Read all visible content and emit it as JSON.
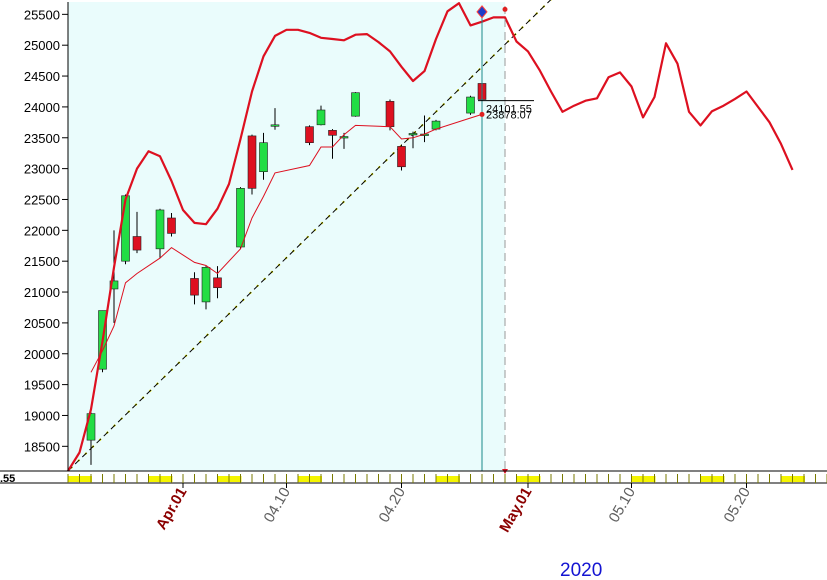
{
  "chart_data": {
    "type": "candlestick",
    "y_axis": {
      "ticks": [
        18500,
        19000,
        19500,
        20000,
        20500,
        21000,
        21500,
        22000,
        22500,
        23000,
        23500,
        24000,
        24500,
        25000,
        25500
      ],
      "range": [
        18100,
        25700
      ],
      "cut_label": ".55"
    },
    "x_axis": {
      "tick_labels": [
        {
          "label": "Apr.01",
          "day": 6,
          "color": "#8b0000",
          "bold": true
        },
        {
          "label": "04.10",
          "day": 15,
          "color": "#606060",
          "bold": false
        },
        {
          "label": "04.20",
          "day": 25,
          "color": "#606060",
          "bold": false
        },
        {
          "label": "May.01",
          "day": 36,
          "color": "#8b0000",
          "bold": true
        },
        {
          "label": "05.10",
          "day": 45,
          "color": "#606060",
          "bold": false
        },
        {
          "label": "05.20",
          "day": 55,
          "color": "#606060",
          "bold": false
        }
      ],
      "year_label": "2020",
      "day_range": [
        -4,
        62
      ],
      "shaded_until_day": 34
    },
    "candles": [
      {
        "day": -2,
        "open": 18600,
        "high": 19050,
        "low": 18200,
        "close": 19030
      },
      {
        "day": -1,
        "open": 19750,
        "high": 20700,
        "low": 19700,
        "close": 20700
      },
      {
        "day": 0,
        "open": 21050,
        "high": 22000,
        "low": 20500,
        "close": 21180
      },
      {
        "day": 1,
        "open": 21500,
        "high": 22580,
        "low": 21450,
        "close": 22560
      },
      {
        "day": 2,
        "open": 21900,
        "high": 22300,
        "low": 21630,
        "close": 21680
      },
      {
        "day": 4,
        "open": 21700,
        "high": 22350,
        "low": 21550,
        "close": 22330
      },
      {
        "day": 5,
        "open": 22200,
        "high": 22280,
        "low": 21900,
        "close": 21950
      },
      {
        "day": 7,
        "open": 21220,
        "high": 21320,
        "low": 20800,
        "close": 20950
      },
      {
        "day": 8,
        "open": 20840,
        "high": 21420,
        "low": 20720,
        "close": 21400
      },
      {
        "day": 9,
        "open": 21230,
        "high": 21420,
        "low": 20900,
        "close": 21070
      },
      {
        "day": 11,
        "open": 21730,
        "high": 22700,
        "low": 21700,
        "close": 22680
      },
      {
        "day": 12,
        "open": 23530,
        "high": 23550,
        "low": 22580,
        "close": 22680
      },
      {
        "day": 13,
        "open": 22950,
        "high": 23580,
        "low": 22820,
        "close": 23420
      },
      {
        "day": 14,
        "open": 23700,
        "high": 23980,
        "low": 23630,
        "close": 23710
      },
      {
        "day": 17,
        "open": 23680,
        "high": 23700,
        "low": 23380,
        "close": 23420
      },
      {
        "day": 18,
        "open": 23710,
        "high": 24020,
        "low": 23700,
        "close": 23950
      },
      {
        "day": 19,
        "open": 23620,
        "high": 23640,
        "low": 23160,
        "close": 23540
      },
      {
        "day": 20,
        "open": 23510,
        "high": 23580,
        "low": 23320,
        "close": 23520
      },
      {
        "day": 21,
        "open": 23850,
        "high": 24240,
        "low": 23840,
        "close": 24230
      },
      {
        "day": 24,
        "open": 24090,
        "high": 24120,
        "low": 23620,
        "close": 23680
      },
      {
        "day": 25,
        "open": 23360,
        "high": 23390,
        "low": 22970,
        "close": 23030
      },
      {
        "day": 26,
        "open": 23560,
        "high": 23600,
        "low": 23330,
        "close": 23570
      },
      {
        "day": 27,
        "open": 23550,
        "high": 23860,
        "low": 23430,
        "close": 23560
      },
      {
        "day": 28,
        "open": 23640,
        "high": 23790,
        "low": 23620,
        "close": 23770
      },
      {
        "day": 31,
        "open": 23900,
        "high": 24180,
        "low": 23870,
        "close": 24160
      },
      {
        "day": 32,
        "open": 24380,
        "high": 24390,
        "low": 24100,
        "close": 24120
      }
    ],
    "thin_line": [
      {
        "day": -2,
        "value": 19700
      },
      {
        "day": -1,
        "value": 20050
      },
      {
        "day": 0,
        "value": 20450
      },
      {
        "day": 1,
        "value": 21150
      },
      {
        "day": 2,
        "value": 21300
      },
      {
        "day": 4,
        "value": 21550
      },
      {
        "day": 5,
        "value": 21720
      },
      {
        "day": 7,
        "value": 21480
      },
      {
        "day": 8,
        "value": 21430
      },
      {
        "day": 9,
        "value": 21300
      },
      {
        "day": 11,
        "value": 21700
      },
      {
        "day": 12,
        "value": 22200
      },
      {
        "day": 13,
        "value": 22550
      },
      {
        "day": 14,
        "value": 22930
      },
      {
        "day": 17,
        "value": 23050
      },
      {
        "day": 18,
        "value": 23350
      },
      {
        "day": 19,
        "value": 23350
      },
      {
        "day": 20,
        "value": 23550
      },
      {
        "day": 21,
        "value": 23700
      },
      {
        "day": 24,
        "value": 23680
      },
      {
        "day": 25,
        "value": 23480
      },
      {
        "day": 26,
        "value": 23500
      },
      {
        "day": 27,
        "value": 23560
      },
      {
        "day": 28,
        "value": 23640
      },
      {
        "day": 31,
        "value": 23820
      },
      {
        "day": 32,
        "value": 23878
      }
    ],
    "bold_line": [
      {
        "day": -4,
        "value": 18100
      },
      {
        "day": -3,
        "value": 18400
      },
      {
        "day": -2,
        "value": 19100
      },
      {
        "day": -1,
        "value": 20200
      },
      {
        "day": 0,
        "value": 21400
      },
      {
        "day": 1,
        "value": 22500
      },
      {
        "day": 2,
        "value": 23000
      },
      {
        "day": 3,
        "value": 23280
      },
      {
        "day": 4,
        "value": 23200
      },
      {
        "day": 5,
        "value": 22800
      },
      {
        "day": 6,
        "value": 22330
      },
      {
        "day": 7,
        "value": 22120
      },
      {
        "day": 8,
        "value": 22100
      },
      {
        "day": 9,
        "value": 22350
      },
      {
        "day": 10,
        "value": 22750
      },
      {
        "day": 11,
        "value": 23480
      },
      {
        "day": 12,
        "value": 24250
      },
      {
        "day": 13,
        "value": 24820
      },
      {
        "day": 14,
        "value": 25150
      },
      {
        "day": 15,
        "value": 25250
      },
      {
        "day": 16,
        "value": 25250
      },
      {
        "day": 17,
        "value": 25200
      },
      {
        "day": 18,
        "value": 25120
      },
      {
        "day": 19,
        "value": 25100
      },
      {
        "day": 20,
        "value": 25080
      },
      {
        "day": 21,
        "value": 25170
      },
      {
        "day": 22,
        "value": 25180
      },
      {
        "day": 23,
        "value": 25050
      },
      {
        "day": 24,
        "value": 24900
      },
      {
        "day": 25,
        "value": 24650
      },
      {
        "day": 26,
        "value": 24420
      },
      {
        "day": 27,
        "value": 24580
      },
      {
        "day": 28,
        "value": 25100
      },
      {
        "day": 29,
        "value": 25550
      },
      {
        "day": 30,
        "value": 25680
      },
      {
        "day": 31,
        "value": 25320
      },
      {
        "day": 32,
        "value": 25380
      },
      {
        "day": 33,
        "value": 25450
      },
      {
        "day": 34,
        "value": 25450
      },
      {
        "day": 35,
        "value": 25060
      },
      {
        "day": 36,
        "value": 24900
      },
      {
        "day": 37,
        "value": 24600
      },
      {
        "day": 38,
        "value": 24250
      },
      {
        "day": 39,
        "value": 23920
      },
      {
        "day": 40,
        "value": 24020
      },
      {
        "day": 41,
        "value": 24100
      },
      {
        "day": 42,
        "value": 24140
      },
      {
        "day": 43,
        "value": 24480
      },
      {
        "day": 44,
        "value": 24560
      },
      {
        "day": 45,
        "value": 24330
      },
      {
        "day": 46,
        "value": 23830
      },
      {
        "day": 47,
        "value": 24160
      },
      {
        "day": 48,
        "value": 25030
      },
      {
        "day": 49,
        "value": 24700
      },
      {
        "day": 50,
        "value": 23920
      },
      {
        "day": 51,
        "value": 23700
      },
      {
        "day": 52,
        "value": 23930
      },
      {
        "day": 53,
        "value": 24020
      },
      {
        "day": 54,
        "value": 24130
      },
      {
        "day": 55,
        "value": 24250
      },
      {
        "day": 56,
        "value": 24000
      },
      {
        "day": 57,
        "value": 23750
      },
      {
        "day": 58,
        "value": 23400
      },
      {
        "day": 59,
        "value": 22980
      }
    ],
    "trendline": {
      "from": {
        "day": -4,
        "value": 18100
      },
      "to": {
        "day": 38,
        "value": 25740
      }
    },
    "cursor_day": 32,
    "forecast_day": 34,
    "price_labels": [
      {
        "text": "24101.55",
        "day": 32,
        "value": 24101.55
      },
      {
        "text": "23878.07",
        "day": 32,
        "value": 23878.07
      }
    ],
    "markers": [
      {
        "shape": "diamond",
        "color": "#1e3cc8",
        "day": 32,
        "value": 25540
      },
      {
        "shape": "dot",
        "color": "#e02020",
        "day": 34,
        "value": 25580
      },
      {
        "shape": "dot",
        "color": "#e02020",
        "day": 32,
        "value": 23878
      }
    ],
    "strip_segments": [
      [
        -4,
        -2
      ],
      [
        3,
        5
      ],
      [
        9,
        11
      ],
      [
        16,
        18
      ],
      [
        28,
        30
      ],
      [
        35,
        37
      ],
      [
        45,
        47
      ],
      [
        51,
        53
      ],
      [
        58,
        60
      ]
    ],
    "colors": {
      "up": "#22dd44",
      "down": "#dd1020",
      "line": "#dd1020",
      "shade": "#eafcfc",
      "cursor": "#1b8a8a",
      "strip": "#f5f500"
    }
  }
}
